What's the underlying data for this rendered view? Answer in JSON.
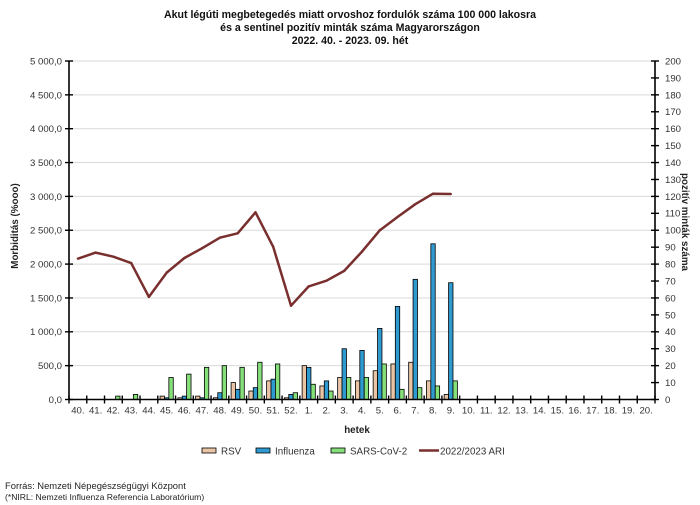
{
  "title": {
    "line1": "Akut légúti megbetegedés miatt orvoshoz fordulók száma 100 000 lakosra",
    "line2": "és a sentinel pozitív minták száma Magyarországon",
    "line3": "2022. 40. - 2023. 09. hét"
  },
  "chart_data": {
    "type": "bar",
    "title": "Akut légúti megbetegedés miatt orvoshoz fordulók száma 100 000 lakosra és a sentinel pozitív minták száma Magyarországon 2022. 40. - 2023. 09. hét",
    "xlabel": "hetek",
    "ylabel_left": "Morbiditás (%ooo)",
    "ylabel_right": "pozitív minták száma",
    "y_left": {
      "range": [
        0,
        5000
      ],
      "tick_labels": [
        "0,0",
        "500,0",
        "1 000,0",
        "1 500,0",
        "2 000,0",
        "2 500,0",
        "3 000,0",
        "3 500,0",
        "4 000,0",
        "4 500,0",
        "5 000,0"
      ]
    },
    "y_right": {
      "range": [
        0,
        200
      ],
      "tick_labels": [
        "0",
        "10",
        "20",
        "30",
        "40",
        "50",
        "60",
        "70",
        "80",
        "90",
        "100",
        "110",
        "120",
        "130",
        "140",
        "150",
        "160",
        "170",
        "180",
        "190",
        "200"
      ]
    },
    "categories": [
      "40.",
      "41.",
      "42.",
      "43.",
      "44.",
      "45.",
      "46.",
      "47.",
      "48.",
      "49.",
      "50.",
      "51.",
      "52.",
      "1.",
      "2.",
      "3.",
      "4.",
      "5.",
      "6.",
      "7.",
      "8.",
      "9.",
      "10.",
      "11.",
      "12.",
      "13.",
      "14.",
      "15.",
      "16.",
      "17.",
      "18.",
      "19.",
      "20."
    ],
    "series": [
      {
        "name": "RSV",
        "type": "bar",
        "axis": "right",
        "color": "#e9c5a5",
        "values": [
          0,
          0,
          0,
          0,
          0,
          2,
          1,
          2,
          1,
          10,
          5,
          11,
          1,
          20,
          8,
          13,
          11,
          17,
          21,
          22,
          11,
          3,
          null,
          null,
          null,
          null,
          null,
          null,
          null,
          null,
          null,
          null,
          null
        ]
      },
      {
        "name": "Influenza",
        "type": "bar",
        "axis": "right",
        "color": "#2f9ad0",
        "values": [
          0,
          0,
          0,
          0,
          0,
          1,
          2,
          1,
          4,
          6,
          7,
          12,
          3,
          19,
          11,
          30,
          29,
          42,
          55,
          71,
          92,
          69,
          null,
          null,
          null,
          null,
          null,
          null,
          null,
          null,
          null,
          null,
          null
        ]
      },
      {
        "name": "SARS-CoV-2",
        "type": "bar",
        "axis": "right",
        "color": "#86e07a",
        "values": [
          0,
          0,
          2,
          3,
          0,
          13,
          15,
          19,
          20,
          19,
          22,
          21,
          4,
          9,
          5,
          13,
          13,
          21,
          6,
          7,
          8,
          11,
          null,
          null,
          null,
          null,
          null,
          null,
          null,
          null,
          null,
          null,
          null
        ]
      },
      {
        "name": "2022/2023 ARI",
        "type": "line",
        "axis": "left",
        "color": "#7a2f2f",
        "values": [
          2080,
          2170,
          2110,
          2015,
          1515,
          1875,
          2090,
          2235,
          2390,
          2455,
          2765,
          2255,
          1385,
          1670,
          1755,
          1900,
          2185,
          2500,
          2695,
          2885,
          3040,
          3035,
          null,
          null,
          null,
          null,
          null,
          null,
          null,
          null,
          null,
          null,
          null
        ]
      }
    ],
    "grid": true,
    "legend_position": "bottom"
  },
  "footer": {
    "source": "Forrás: Nemzeti Népegészségügyi Központ",
    "note": "(*NIRL: Nemzeti Influenza Referencia Laboratórium)"
  }
}
